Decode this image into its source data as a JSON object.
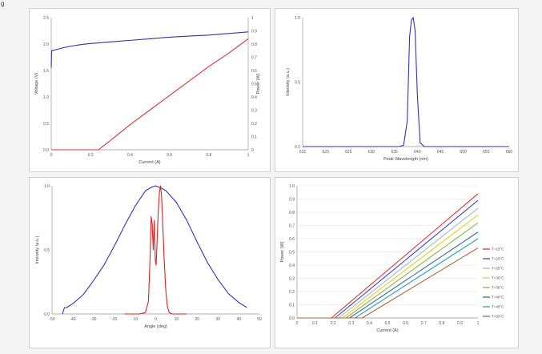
{
  "corner_text": "g",
  "chart_data": [
    {
      "type": "line",
      "id": "liv",
      "xlabel": "Current (A)",
      "ylabel": "Voltage (V)",
      "y2label": "Power (W)",
      "xlim": [
        0,
        1
      ],
      "ylim": [
        0,
        2.5
      ],
      "y2lim": [
        0,
        1
      ],
      "xticks": [
        "0",
        "0.2",
        "0.4",
        "0.6",
        "0.8",
        "1"
      ],
      "yticks": [
        "0.0",
        "0.5",
        "1.0",
        "1.5",
        "2.0",
        "2.5"
      ],
      "y2ticks": [
        "0",
        "0.1",
        "0.2",
        "0.3",
        "0.4",
        "0.5",
        "0.6",
        "0.7",
        "0.8",
        "0.9",
        "1"
      ],
      "grid": false,
      "series": [
        {
          "axis": "left",
          "color": "#3333aa",
          "x": [
            0,
            0.002,
            0.01,
            0.03,
            0.06,
            0.1,
            0.15,
            0.2,
            0.3,
            0.4,
            0.5,
            0.6,
            0.7,
            0.8,
            0.9,
            1.0
          ],
          "y": [
            1.55,
            1.87,
            1.88,
            1.9,
            1.93,
            1.96,
            1.99,
            2.01,
            2.04,
            2.07,
            2.1,
            2.13,
            2.15,
            2.17,
            2.2,
            2.23
          ]
        },
        {
          "axis": "right",
          "color": "#dd3333",
          "x": [
            0,
            0.1,
            0.2,
            0.24,
            0.3,
            0.4,
            0.5,
            0.6,
            0.7,
            0.8,
            0.9,
            1.0
          ],
          "y": [
            0,
            0,
            0,
            0,
            0.07,
            0.19,
            0.3,
            0.41,
            0.52,
            0.63,
            0.73,
            0.84
          ]
        }
      ]
    },
    {
      "type": "line",
      "id": "spectrum",
      "xlabel": "Peak Wavelength (nm)",
      "ylabel": "Intensity (a.u.)",
      "xlim": [
        615,
        660
      ],
      "ylim": [
        0,
        1
      ],
      "xticks": [
        "615",
        "620",
        "625",
        "630",
        "635",
        "640",
        "645",
        "650",
        "655",
        "660"
      ],
      "yticks": [
        "0.0",
        "0.5",
        "1.0"
      ],
      "grid": false,
      "series": [
        {
          "color": "#3333bb",
          "x": [
            615,
            630,
            636,
            637,
            637.8,
            638.3,
            638.7,
            639.1,
            639.5,
            640,
            640.6,
            641.5,
            660
          ],
          "y": [
            0,
            0,
            0,
            0.01,
            0.2,
            0.85,
            0.98,
            1.0,
            0.9,
            0.4,
            0.03,
            0,
            0
          ]
        }
      ]
    },
    {
      "type": "line",
      "id": "farfield",
      "xlabel": "Angle (deg)",
      "ylabel": "Intensity (a.u.)",
      "xlim": [
        -50,
        50
      ],
      "ylim": [
        0,
        1
      ],
      "xticks": [
        "-50",
        "-40",
        "-30",
        "-20",
        "-10",
        "0",
        "10",
        "20",
        "30",
        "40",
        "50"
      ],
      "yticks": [
        "0.0",
        "0.5",
        "1.0"
      ],
      "grid": false,
      "series": [
        {
          "color": "#3333bb",
          "x": [
            -45,
            -44,
            -43,
            -40,
            -35,
            -30,
            -25,
            -20,
            -15,
            -10,
            -5,
            -2,
            0,
            3,
            5,
            10,
            15,
            20,
            25,
            30,
            35,
            40,
            44
          ],
          "y": [
            0,
            0.05,
            0.05,
            0.08,
            0.15,
            0.26,
            0.38,
            0.53,
            0.69,
            0.84,
            0.96,
            0.99,
            1.0,
            0.98,
            0.96,
            0.87,
            0.73,
            0.56,
            0.4,
            0.27,
            0.16,
            0.09,
            0.05
          ]
        },
        {
          "color": "#dd2222",
          "x": [
            -15,
            -8,
            -5,
            -3.5,
            -2.7,
            -2.2,
            -1.7,
            -1.2,
            -0.7,
            -0.2,
            0.2,
            0.7,
            1.2,
            1.8,
            2.3,
            2.8,
            3.3,
            4.0,
            4.8,
            5.6,
            6.5,
            8,
            15
          ],
          "y": [
            0,
            0,
            0.01,
            0.1,
            0.45,
            0.76,
            0.7,
            0.5,
            0.73,
            0.42,
            0.38,
            0.58,
            0.8,
            0.95,
            1.0,
            0.92,
            0.75,
            0.45,
            0.2,
            0.06,
            0.01,
            0,
            0
          ]
        }
      ]
    },
    {
      "type": "line",
      "id": "li_temperature",
      "xlabel": "Current (A)",
      "ylabel": "Power (W)",
      "xlim": [
        0,
        1
      ],
      "ylim": [
        0,
        1
      ],
      "xticks": [
        "0",
        "0.1",
        "0.2",
        "0.3",
        "0.4",
        "0.5",
        "0.6",
        "0.7",
        "0.8",
        "0.9",
        "1"
      ],
      "yticks": [
        "0.0",
        "0.1",
        "0.2",
        "0.3",
        "0.4",
        "0.5",
        "0.6",
        "0.7",
        "0.8",
        "0.9",
        "1.0"
      ],
      "grid": true,
      "legend": "right",
      "series": [
        {
          "name": "T=15°C",
          "color": "#dd3333",
          "x": [
            0,
            0.19,
            1.0
          ],
          "y": [
            0,
            0,
            0.94
          ]
        },
        {
          "name": "T=20°C",
          "color": "#4444bb",
          "x": [
            0,
            0.21,
            1.0
          ],
          "y": [
            0,
            0,
            0.89
          ]
        },
        {
          "name": "T=25°C",
          "color": "#99bbdd",
          "x": [
            0,
            0.23,
            1.0
          ],
          "y": [
            0,
            0,
            0.83
          ]
        },
        {
          "name": "T=30°C",
          "color": "#eecc22",
          "x": [
            0,
            0.25,
            1.0
          ],
          "y": [
            0,
            0,
            0.78
          ]
        },
        {
          "name": "T=35°C",
          "color": "#88bb44",
          "x": [
            0,
            0.27,
            1.0
          ],
          "y": [
            0,
            0,
            0.72
          ]
        },
        {
          "name": "T=40°C",
          "color": "#4466aa",
          "x": [
            0,
            0.29,
            1.0
          ],
          "y": [
            0,
            0,
            0.65
          ]
        },
        {
          "name": "T=45°C",
          "color": "#22aaaa",
          "x": [
            0,
            0.32,
            1.0
          ],
          "y": [
            0,
            0,
            0.6
          ]
        },
        {
          "name": "T=50°C",
          "color": "#aa6633",
          "x": [
            0,
            0.36,
            1.0
          ],
          "y": [
            0,
            0,
            0.53
          ]
        }
      ]
    }
  ]
}
